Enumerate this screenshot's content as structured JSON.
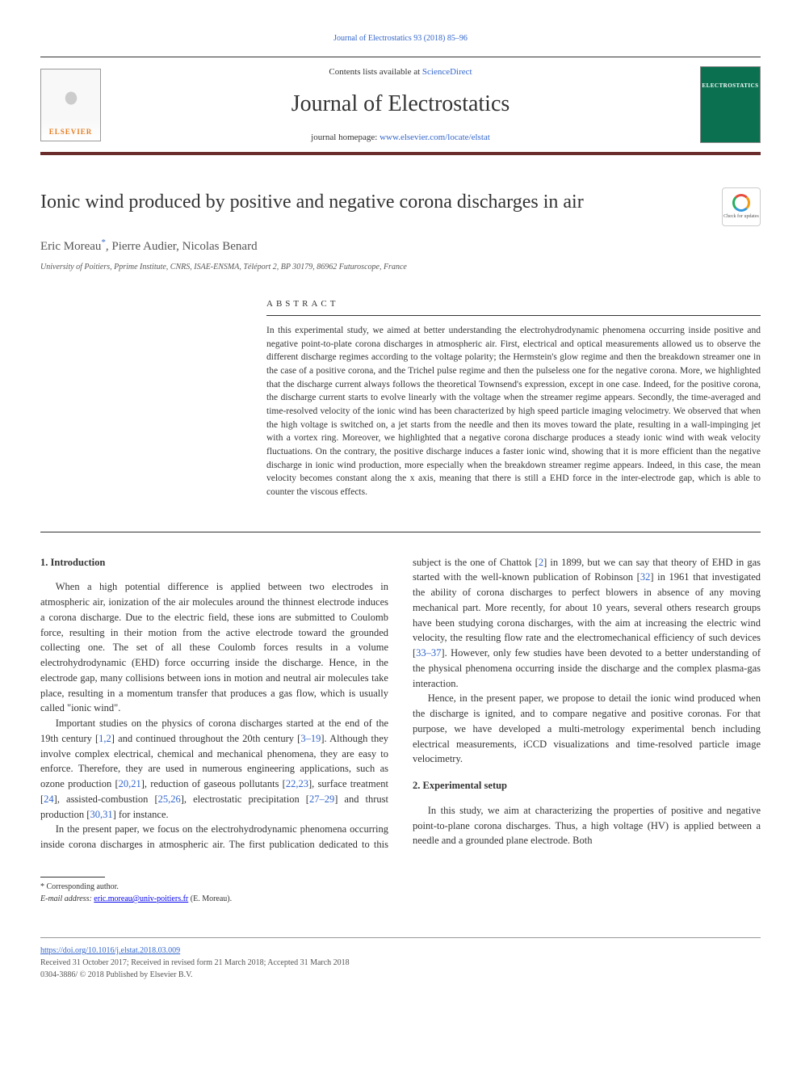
{
  "journal_ref_line": "Journal of Electrostatics 93 (2018) 85–96",
  "header": {
    "publisher_name": "ELSEVIER",
    "contents_prefix": "Contents lists available at ",
    "contents_link": "ScienceDirect",
    "journal_name": "Journal of Electrostatics",
    "homepage_prefix": "journal homepage: ",
    "homepage_url": "www.elsevier.com/locate/elstat",
    "cover_label": "ELECTROSTATICS"
  },
  "article": {
    "title": "Ionic wind produced by positive and negative corona discharges in air",
    "check_updates_label": "Check for updates",
    "authors": "Eric Moreau",
    "authors_rest": ", Pierre Audier, Nicolas Benard",
    "corresp_mark": "*",
    "affiliation": "University of Poitiers, Pprime Institute, CNRS, ISAE-ENSMA, Téléport 2, BP 30179, 86962 Futuroscope, France"
  },
  "abstract": {
    "heading": "ABSTRACT",
    "text": "In this experimental study, we aimed at better understanding the electrohydrodynamic phenomena occurring inside positive and negative point-to-plate corona discharges in atmospheric air. First, electrical and optical measurements allowed us to observe the different discharge regimes according to the voltage polarity; the Hermstein's glow regime and then the breakdown streamer one in the case of a positive corona, and the Trichel pulse regime and then the pulseless one for the negative corona. More, we highlighted that the discharge current always follows the theoretical Townsend's expression, except in one case. Indeed, for the positive corona, the discharge current starts to evolve linearly with the voltage when the streamer regime appears. Secondly, the time-averaged and time-resolved velocity of the ionic wind has been characterized by high speed particle imaging velocimetry. We observed that when the high voltage is switched on, a jet starts from the needle and then its moves toward the plate, resulting in a wall-impinging jet with a vortex ring. Moreover, we highlighted that a negative corona discharge produces a steady ionic wind with weak velocity fluctuations. On the contrary, the positive discharge induces a faster ionic wind, showing that it is more efficient than the negative discharge in ionic wind production, more especially when the breakdown streamer regime appears. Indeed, in this case, the mean velocity becomes constant along the x axis, meaning that there is still a EHD force in the inter-electrode gap, which is able to counter the viscous effects."
  },
  "sections": {
    "s1_heading": "1. Introduction",
    "s1_p1": "When a high potential difference is applied between two electrodes in atmospheric air, ionization of the air molecules around the thinnest electrode induces a corona discharge. Due to the electric field, these ions are submitted to Coulomb force, resulting in their motion from the active electrode toward the grounded collecting one. The set of all these Coulomb forces results in a volume electrohydrodynamic (EHD) force occurring inside the discharge. Hence, in the electrode gap, many collisions between ions in motion and neutral air molecules take place, resulting in a momentum transfer that produces a gas flow, which is usually called \"ionic wind\".",
    "s1_p2a": "Important studies on the physics of corona discharges started at the end of the 19th century [",
    "ref_1_2": "1,2",
    "s1_p2b": "] and continued throughout the 20th century [",
    "ref_3_19": "3–19",
    "s1_p2c": "]. Although they involve complex electrical, chemical and mechanical phenomena, they are easy to enforce. Therefore, they are used in numerous engineering applications, such as ozone production [",
    "ref_20_21": "20,21",
    "s1_p2d": "], reduction of gaseous pollutants [",
    "ref_22_23": "22,23",
    "s1_p2e": "], surface treatment [",
    "ref_24": "24",
    "s1_p2f": "], assisted-combustion [",
    "ref_25_26": "25,26",
    "s1_p2g": "], electrostatic precipitation [",
    "ref_27_29": "27–29",
    "s1_p2h": "] and thrust production [",
    "ref_30_31": "30,31",
    "s1_p2i": "] for instance.",
    "s1_p3a": "In the present paper, we focus on the electrohydrodynamic phenomena occurring inside corona discharges in atmospheric air. The first publication dedicated to this subject is the one of Chattok [",
    "ref_2": "2",
    "s1_p3b": "] in 1899, but we can say that theory of EHD in gas started with the well-known publication of Robinson [",
    "ref_32": "32",
    "s1_p3c": "] in 1961 that investigated the ability of corona discharges to perfect blowers in absence of any moving mechanical part. More recently, for about 10 years, several others research groups have been studying corona discharges, with the aim at increasing the electric wind velocity, the resulting flow rate and the electromechanical efficiency of such devices [",
    "ref_33_37": "33–37",
    "s1_p3d": "]. However, only few studies have been devoted to a better understanding of the physical phenomena occurring inside the discharge and the complex plasma-gas interaction.",
    "s1_p4": "Hence, in the present paper, we propose to detail the ionic wind produced when the discharge is ignited, and to compare negative and positive coronas. For that purpose, we have developed a multi-metrology experimental bench including electrical measurements, iCCD visualizations and time-resolved particle image velocimetry.",
    "s2_heading": "2. Experimental setup",
    "s2_p1": "In this study, we aim at characterizing the properties of positive and negative point-to-plane corona discharges. Thus, a high voltage (HV) is applied between a needle and a grounded plane electrode. Both"
  },
  "footer": {
    "corresp_note": "* Corresponding author.",
    "email_label": "E-mail address: ",
    "email": "eric.moreau@univ-poitiers.fr",
    "email_suffix": " (E. Moreau).",
    "doi": "https://doi.org/10.1016/j.elstat.2018.03.009",
    "received": "Received 31 October 2017; Received in revised form 21 March 2018; Accepted 31 March 2018",
    "copyright": "0304-3886/ © 2018 Published by Elsevier B.V."
  },
  "colors": {
    "link": "#3366cc",
    "rule": "#6b2c2c",
    "cover_bg": "#0a7050",
    "publisher": "#e67e22"
  },
  "typography": {
    "body_pt": 12.5,
    "title_pt": 24,
    "journal_pt": 28,
    "abstract_pt": 11.5,
    "footer_pt": 10
  }
}
